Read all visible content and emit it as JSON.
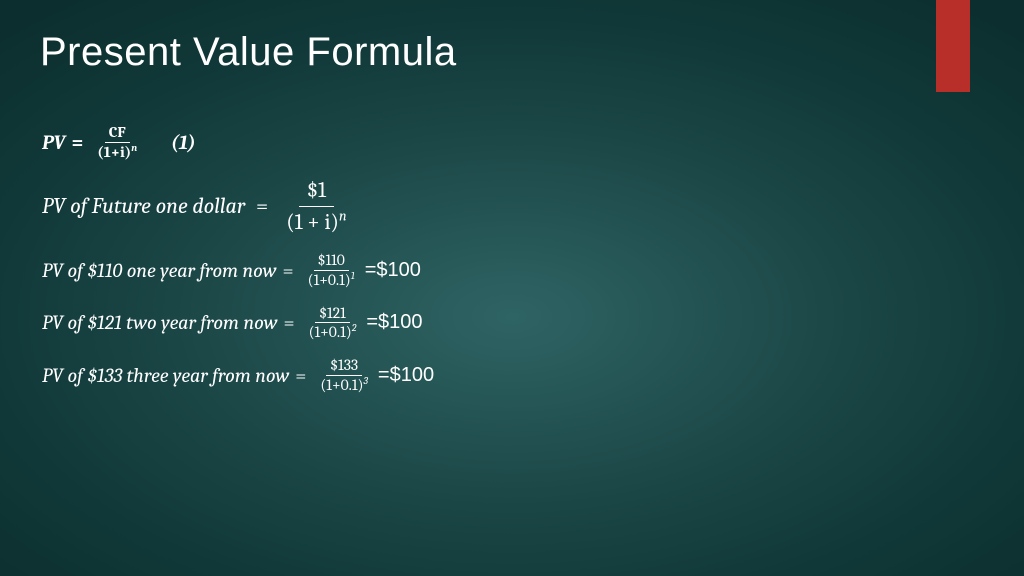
{
  "slide": {
    "title": "Present Value Formula",
    "accent_color": "#b82f2a",
    "bg_center": "#2f6464",
    "bg_edge": "#0c2e2e",
    "text_color": "#ffffff",
    "title_fontsize": 40,
    "body_fontsize": 20
  },
  "formula": {
    "lhs": "PV",
    "eq": "=",
    "num": "CF",
    "den_base": "(1+i)",
    "den_exp": "n",
    "tag": "(1)"
  },
  "lines": [
    {
      "lhs": "PV of Future one dollar ",
      "num": "$1",
      "den_base": "(1 + i)",
      "den_exp": "n",
      "frac_size": "big",
      "result": ""
    },
    {
      "lhs": "PV of $110 one year from now",
      "num": "$110",
      "den_base": "(1+0.1)",
      "den_exp": "1",
      "frac_size": "small",
      "result": "=$100"
    },
    {
      "lhs": "PV of $121 two year from now",
      "num": "$121",
      "den_base": "(1+0.1)",
      "den_exp": "2",
      "frac_size": "small",
      "result": "=$100"
    },
    {
      "lhs": "PV of $133 three year from now",
      "num": "$133",
      "den_base": "(1+0.1)",
      "den_exp": "3",
      "frac_size": "small",
      "result": "=$100"
    }
  ]
}
